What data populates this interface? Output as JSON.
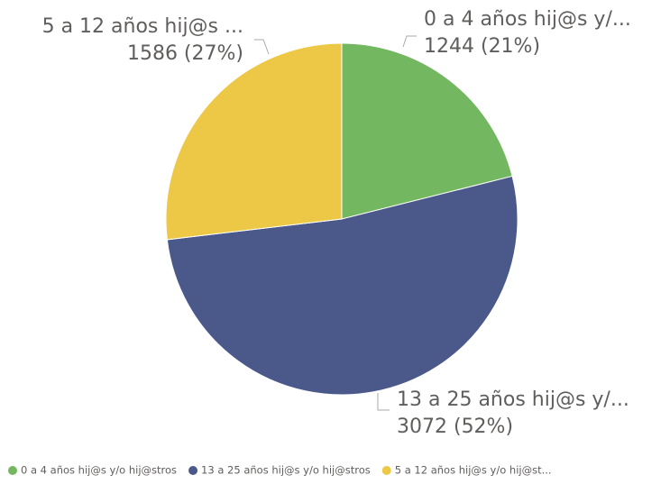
{
  "chart_data": {
    "type": "pie",
    "categories": [
      "0 a 4 años hij@s y/o hij@stros",
      "13 a 25 años hij@s y/o hij@stros",
      "5 a 12 años hij@s y/o hij@st..."
    ],
    "data_labels": [
      "0 a 4 años hij@s y/...",
      "13 a 25 años hij@s y/...",
      "5 a 12 años hij@s ..."
    ],
    "values": [
      1244,
      3072,
      1586
    ],
    "value_labels": [
      "1244 (21%)",
      "3072 (52%)",
      "1586 (27%)"
    ],
    "colors": [
      "#73b761",
      "#4a588a",
      "#ecc846"
    ]
  }
}
